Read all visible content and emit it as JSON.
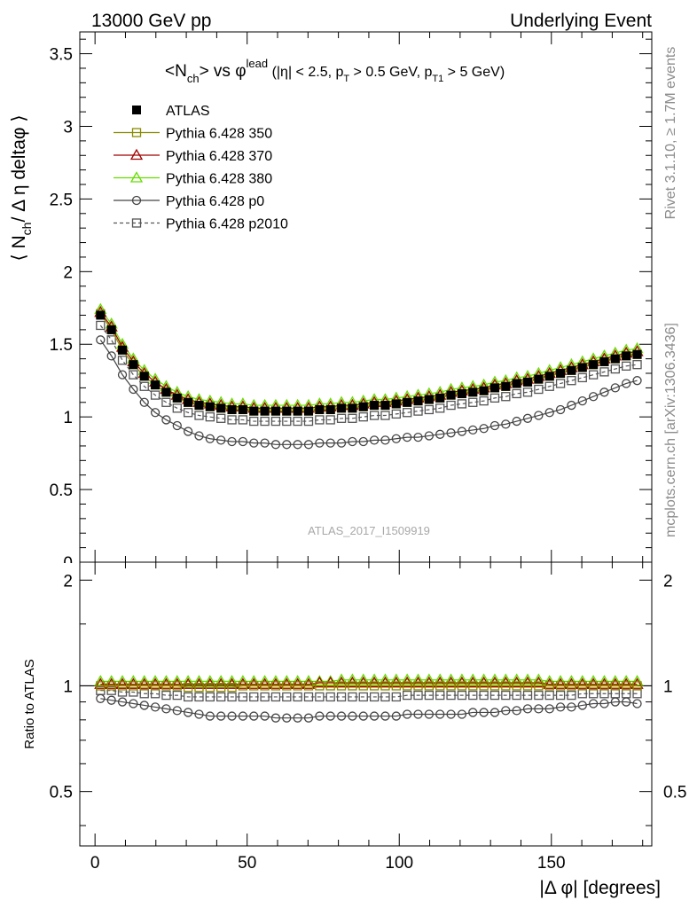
{
  "header": {
    "left": "13000 GeV pp",
    "right": "Underlying Event"
  },
  "side_labels": {
    "rivet": "Rivet 3.1.10, ≥ 1.7M events",
    "mcplots": "mcplots.cern.ch [arXiv:1306.3436]"
  },
  "watermark": "ATLAS_2017_I1509919",
  "chart_data": [
    {
      "type": "scatter",
      "title": {
        "main": "<N",
        "main_sub": "ch",
        "main_mid": "> vs φ",
        "main_sup": "lead",
        "cond_a": " (|η| < 2.5, p",
        "cond_a_sub": "T",
        "cond_b": " > 0.5 GeV, p",
        "cond_b_sub": "T1",
        "cond_c": " > 5 GeV)"
      },
      "ylabel": {
        "pre": "⟨ N",
        "sub": "ch",
        "post": "/ Δ η deltaφ ⟩"
      },
      "xlabel": "|Δ φ| [degrees]",
      "xlim": [
        -5,
        183
      ],
      "ylim": [
        0,
        3.65
      ],
      "xticks": [
        "0",
        "50",
        "100",
        "150"
      ],
      "yticks": [
        "0.5",
        "1",
        "1.5",
        "2",
        "2.5",
        "3",
        "3.5"
      ],
      "legend_position": "top-left",
      "x": [
        1.8,
        5.4,
        9,
        12.6,
        16.2,
        19.8,
        23.4,
        27,
        30.6,
        34.2,
        37.8,
        41.4,
        45,
        48.6,
        52.2,
        55.8,
        59.4,
        63,
        66.6,
        70.2,
        73.8,
        77.4,
        81,
        84.6,
        88.2,
        91.8,
        95.4,
        99,
        102.6,
        106.2,
        109.8,
        113.4,
        117,
        120.6,
        124.2,
        127.8,
        131.4,
        135,
        138.6,
        142.2,
        145.8,
        149.4,
        153,
        156.6,
        160.2,
        163.8,
        167.4,
        171,
        174.6,
        178.2
      ],
      "series": [
        {
          "name": "ATLAS",
          "color": "#000000",
          "marker": "filled-square",
          "line": "none",
          "values": [
            1.7,
            1.6,
            1.46,
            1.36,
            1.28,
            1.22,
            1.17,
            1.13,
            1.1,
            1.08,
            1.07,
            1.06,
            1.05,
            1.05,
            1.04,
            1.04,
            1.04,
            1.04,
            1.04,
            1.04,
            1.05,
            1.05,
            1.06,
            1.06,
            1.07,
            1.08,
            1.08,
            1.09,
            1.1,
            1.11,
            1.12,
            1.13,
            1.15,
            1.16,
            1.17,
            1.18,
            1.2,
            1.21,
            1.23,
            1.24,
            1.26,
            1.28,
            1.3,
            1.32,
            1.34,
            1.36,
            1.38,
            1.4,
            1.42,
            1.43
          ]
        },
        {
          "name": "Pythia 6.428 350",
          "color": "#8a8a00",
          "marker": "open-square",
          "line": "solid",
          "values": [
            1.71,
            1.6,
            1.46,
            1.36,
            1.28,
            1.22,
            1.17,
            1.13,
            1.1,
            1.08,
            1.07,
            1.06,
            1.05,
            1.05,
            1.04,
            1.04,
            1.04,
            1.04,
            1.04,
            1.04,
            1.05,
            1.05,
            1.06,
            1.06,
            1.07,
            1.08,
            1.08,
            1.09,
            1.1,
            1.11,
            1.12,
            1.13,
            1.15,
            1.16,
            1.17,
            1.18,
            1.2,
            1.21,
            1.23,
            1.24,
            1.26,
            1.28,
            1.3,
            1.32,
            1.34,
            1.36,
            1.38,
            1.4,
            1.42,
            1.43
          ]
        },
        {
          "name": "Pythia 6.428 370",
          "color": "#a00000",
          "marker": "open-triangle",
          "line": "solid",
          "values": [
            1.72,
            1.62,
            1.48,
            1.38,
            1.3,
            1.24,
            1.19,
            1.15,
            1.12,
            1.1,
            1.09,
            1.08,
            1.07,
            1.07,
            1.06,
            1.06,
            1.06,
            1.06,
            1.06,
            1.06,
            1.07,
            1.07,
            1.08,
            1.08,
            1.09,
            1.1,
            1.1,
            1.11,
            1.12,
            1.13,
            1.14,
            1.15,
            1.17,
            1.18,
            1.19,
            1.2,
            1.22,
            1.23,
            1.25,
            1.26,
            1.28,
            1.3,
            1.32,
            1.34,
            1.36,
            1.38,
            1.4,
            1.42,
            1.44,
            1.45
          ]
        },
        {
          "name": "Pythia 6.428 380",
          "color": "#66dd00",
          "marker": "open-triangle",
          "line": "solid",
          "values": [
            1.74,
            1.64,
            1.5,
            1.4,
            1.32,
            1.26,
            1.21,
            1.17,
            1.14,
            1.12,
            1.11,
            1.1,
            1.09,
            1.09,
            1.08,
            1.08,
            1.08,
            1.08,
            1.08,
            1.08,
            1.09,
            1.09,
            1.1,
            1.1,
            1.11,
            1.12,
            1.12,
            1.13,
            1.14,
            1.15,
            1.16,
            1.17,
            1.19,
            1.2,
            1.21,
            1.22,
            1.24,
            1.25,
            1.27,
            1.28,
            1.3,
            1.32,
            1.34,
            1.36,
            1.38,
            1.4,
            1.42,
            1.44,
            1.46,
            1.47
          ]
        },
        {
          "name": "Pythia 6.428 p0",
          "color": "#444444",
          "marker": "open-circle",
          "line": "solid",
          "values": [
            1.53,
            1.42,
            1.29,
            1.19,
            1.1,
            1.03,
            0.98,
            0.94,
            0.9,
            0.87,
            0.85,
            0.84,
            0.83,
            0.83,
            0.82,
            0.82,
            0.81,
            0.81,
            0.81,
            0.81,
            0.82,
            0.82,
            0.82,
            0.83,
            0.83,
            0.84,
            0.84,
            0.85,
            0.86,
            0.86,
            0.87,
            0.88,
            0.89,
            0.9,
            0.91,
            0.92,
            0.94,
            0.95,
            0.97,
            0.99,
            1.01,
            1.03,
            1.05,
            1.08,
            1.11,
            1.14,
            1.17,
            1.2,
            1.23,
            1.25
          ]
        },
        {
          "name": "Pythia 6.428 p2010",
          "color": "#555555",
          "marker": "open-square",
          "line": "dashed",
          "values": [
            1.63,
            1.53,
            1.39,
            1.29,
            1.21,
            1.15,
            1.1,
            1.06,
            1.03,
            1.01,
            1.0,
            0.99,
            0.98,
            0.98,
            0.97,
            0.97,
            0.97,
            0.97,
            0.97,
            0.97,
            0.98,
            0.98,
            0.99,
            0.99,
            1.0,
            1.01,
            1.01,
            1.02,
            1.03,
            1.04,
            1.05,
            1.06,
            1.08,
            1.09,
            1.1,
            1.11,
            1.13,
            1.14,
            1.16,
            1.17,
            1.19,
            1.21,
            1.23,
            1.25,
            1.27,
            1.29,
            1.31,
            1.33,
            1.35,
            1.36
          ]
        }
      ]
    },
    {
      "type": "scatter",
      "ylabel": "Ratio to ATLAS",
      "xlim": [
        -5,
        183
      ],
      "ylim": [
        0.35,
        2.25
      ],
      "yscale": "log",
      "xticks": [
        "0",
        "50",
        "100",
        "150"
      ],
      "yticks": [
        "0.5",
        "1",
        "2"
      ],
      "reference_line": 1,
      "series_ratio": [
        {
          "name": "Pythia 6.428 350",
          "values": [
            1.0,
            1.0,
            1.0,
            1.0,
            1.0,
            1.0,
            1.0,
            1.0,
            0.99,
            0.99,
            0.99,
            0.99,
            0.99,
            1.0,
            1.0,
            1.0,
            1.0,
            1.0,
            1.0,
            1.0,
            1.0,
            1.0,
            1.0,
            1.0,
            1.0,
            1.0,
            1.0,
            1.0,
            1.0,
            1.0,
            1.0,
            1.0,
            1.0,
            1.0,
            1.0,
            1.0,
            1.0,
            1.0,
            1.0,
            1.0,
            1.0,
            1.0,
            1.0,
            1.0,
            1.0,
            1.0,
            1.0,
            1.0,
            1.0,
            1.0
          ]
        },
        {
          "name": "Pythia 6.428 370",
          "values": [
            1.01,
            1.01,
            1.01,
            1.01,
            1.01,
            1.01,
            1.01,
            1.01,
            1.01,
            1.01,
            1.01,
            1.01,
            1.01,
            1.01,
            1.01,
            1.01,
            1.01,
            1.01,
            1.01,
            1.01,
            1.02,
            1.02,
            1.02,
            1.02,
            1.02,
            1.02,
            1.02,
            1.02,
            1.02,
            1.02,
            1.02,
            1.02,
            1.02,
            1.02,
            1.02,
            1.02,
            1.02,
            1.02,
            1.02,
            1.02,
            1.02,
            1.01,
            1.01,
            1.01,
            1.01,
            1.01,
            1.01,
            1.01,
            1.01,
            1.01
          ]
        },
        {
          "name": "Pythia 6.428 380",
          "values": [
            1.03,
            1.03,
            1.03,
            1.03,
            1.03,
            1.03,
            1.03,
            1.03,
            1.03,
            1.03,
            1.03,
            1.03,
            1.03,
            1.03,
            1.03,
            1.03,
            1.03,
            1.03,
            1.03,
            1.03,
            1.03,
            1.03,
            1.04,
            1.04,
            1.04,
            1.04,
            1.04,
            1.04,
            1.04,
            1.04,
            1.04,
            1.04,
            1.04,
            1.04,
            1.04,
            1.04,
            1.04,
            1.04,
            1.04,
            1.04,
            1.04,
            1.03,
            1.03,
            1.03,
            1.03,
            1.03,
            1.03,
            1.03,
            1.03,
            1.03
          ]
        },
        {
          "name": "Pythia 6.428 p0",
          "values": [
            0.92,
            0.91,
            0.9,
            0.89,
            0.88,
            0.87,
            0.86,
            0.85,
            0.84,
            0.83,
            0.82,
            0.82,
            0.82,
            0.82,
            0.82,
            0.82,
            0.81,
            0.81,
            0.81,
            0.81,
            0.82,
            0.82,
            0.82,
            0.82,
            0.82,
            0.82,
            0.82,
            0.82,
            0.83,
            0.83,
            0.83,
            0.83,
            0.83,
            0.83,
            0.84,
            0.84,
            0.84,
            0.85,
            0.85,
            0.86,
            0.86,
            0.86,
            0.87,
            0.87,
            0.88,
            0.89,
            0.89,
            0.9,
            0.9,
            0.89
          ]
        },
        {
          "name": "Pythia 6.428 p2010",
          "values": [
            0.97,
            0.97,
            0.96,
            0.96,
            0.95,
            0.95,
            0.94,
            0.94,
            0.93,
            0.93,
            0.93,
            0.93,
            0.93,
            0.93,
            0.93,
            0.93,
            0.93,
            0.93,
            0.93,
            0.93,
            0.93,
            0.93,
            0.93,
            0.93,
            0.93,
            0.93,
            0.93,
            0.93,
            0.94,
            0.94,
            0.94,
            0.94,
            0.94,
            0.94,
            0.94,
            0.94,
            0.94,
            0.94,
            0.94,
            0.94,
            0.94,
            0.94,
            0.94,
            0.94,
            0.95,
            0.95,
            0.95,
            0.95,
            0.95,
            0.95
          ]
        }
      ]
    }
  ]
}
